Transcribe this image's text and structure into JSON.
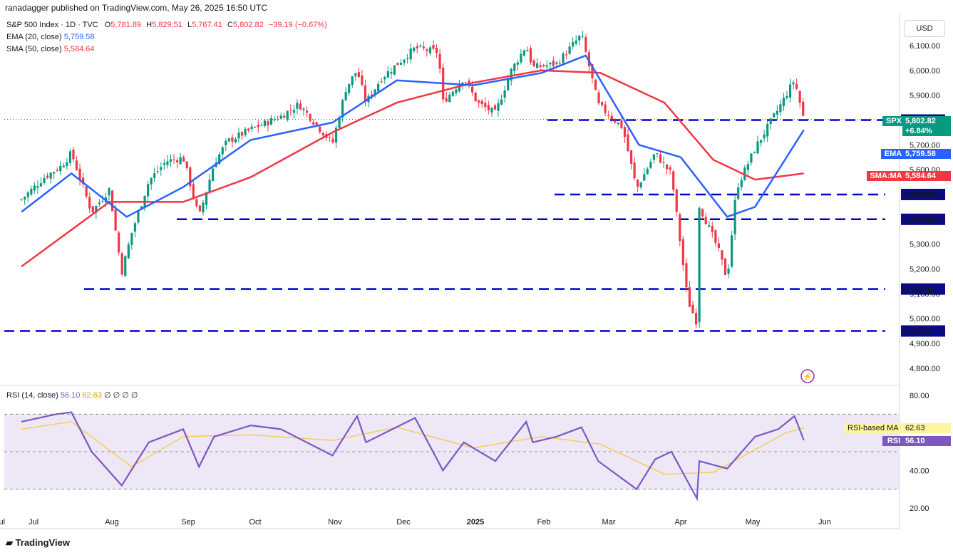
{
  "header": {
    "published": "ranadagger published on TradingView.com, May 26, 2025 16:50 UTC",
    "currency": "USD",
    "branding": "TradingView"
  },
  "legend": {
    "symbol": "S&P 500 Index · 1D · TVC",
    "ohlc": {
      "o_label": "O",
      "o": "5,781.89",
      "h_label": "H",
      "h": "5,829.51",
      "l_label": "L",
      "l": "5,767.41",
      "c_label": "C",
      "c": "5,802.82",
      "change": "−39.19 (−0.67%)"
    },
    "ema_label": "EMA (20, close)",
    "ema_value": "5,759.58",
    "sma_label": "SMA (50, close)",
    "sma_value": "5,584.64",
    "rsi_label": "RSI (14, close)",
    "rsi_value": "56.10",
    "rsi_ma_value": "62.63",
    "rsi_extra": "∅ ∅ ∅ ∅"
  },
  "price_tags": {
    "spx_name": "SPX",
    "spx_value": "5,802.82",
    "spx_change": "+6.84%",
    "ema_name": "EMA",
    "ema_value": "5,759.58",
    "sma_name": "SMA:MA",
    "sma_value": "5,584.64",
    "rsi_ma_name": "RSI-based MA",
    "rsi_ma_value": "62.63",
    "rsi_name": "RSI",
    "rsi_value": "56.10"
  },
  "colors": {
    "up": "#089981",
    "down": "#f23645",
    "ema": "#2962ff",
    "sma": "#f23645",
    "rsi": "#7e57c2",
    "rsi_ma": "#f7c948",
    "level": "#0000cc",
    "rsi_band": "#ede7f6"
  },
  "chart_data": [
    {
      "type": "candlestick",
      "title": "S&P 500 Index · 1D · TVC",
      "y_axis_ticks": [
        "4,800.00",
        "4,900.00",
        "5,000.00",
        "5,100.00",
        "5,200.00",
        "5,300.00",
        "5,400.00",
        "5,500.00",
        "5,600.00",
        "5,700.00",
        "5,800.00",
        "5,900.00",
        "6,000.00",
        "6,100.00"
      ],
      "ylim": [
        4760,
        6150
      ],
      "x_axis_ticks": [
        "Jul",
        "Aug",
        "Sep",
        "Oct",
        "Nov",
        "Dec",
        "2025",
        "Feb",
        "Mar",
        "Apr",
        "May",
        "Jun",
        "Jul"
      ],
      "horizontal_levels": [
        {
          "value": 5800,
          "label": "5,800.00",
          "from": "Dec"
        },
        {
          "value": 5500,
          "label": "5,500.00",
          "from": "Feb"
        },
        {
          "value": 5400,
          "label": "5,400.00",
          "from": "Aug"
        },
        {
          "value": 5119,
          "label": "5,119.00",
          "from": "Jul"
        },
        {
          "value": 4950,
          "label": "4,950.00",
          "from": "Jun"
        }
      ],
      "series": [
        {
          "name": "S&P 500 Index",
          "points": [
            [
              "Jun 26",
              5480
            ],
            [
              "Jul 5",
              5567
            ],
            [
              "Jul 12",
              5615
            ],
            [
              "Jul 16",
              5667
            ],
            [
              "Jul 24",
              5428
            ],
            [
              "Jul 31",
              5522
            ],
            [
              "Aug 5",
              5186
            ],
            [
              "Aug 9",
              5344
            ],
            [
              "Aug 16",
              5554
            ],
            [
              "Aug 23",
              5634
            ],
            [
              "Aug 30",
              5648
            ],
            [
              "Sep 6",
              5408
            ],
            [
              "Sep 13",
              5626
            ],
            [
              "Sep 19",
              5713
            ],
            [
              "Sep 30",
              5762
            ],
            [
              "Oct 11",
              5815
            ],
            [
              "Oct 18",
              5864
            ],
            [
              "Oct 31",
              5705
            ],
            [
              "Nov 6",
              5929
            ],
            [
              "Nov 11",
              6001
            ],
            [
              "Nov 15",
              5870
            ],
            [
              "Nov 22",
              5969
            ],
            [
              "Dec 6",
              6090
            ],
            [
              "Dec 16",
              6074
            ],
            [
              "Dec 18",
              5872
            ],
            [
              "Dec 27",
              5970
            ],
            [
              "Jan 2",
              5868
            ],
            [
              "Jan 10",
              5827
            ],
            [
              "Jan 17",
              5997
            ],
            [
              "Jan 24",
              6101
            ],
            [
              "Jan 27",
              6012
            ],
            [
              "Feb 7",
              6026
            ],
            [
              "Feb 19",
              6144
            ],
            [
              "Feb 27",
              5861
            ],
            [
              "Mar 7",
              5770
            ],
            [
              "Mar 13",
              5522
            ],
            [
              "Mar 21",
              5667
            ],
            [
              "Mar 28",
              5581
            ],
            [
              "Apr 4",
              5074
            ],
            [
              "Apr 8",
              4982
            ],
            [
              "Apr 9",
              5456
            ],
            [
              "Apr 17",
              5282
            ],
            [
              "Apr 21",
              5158
            ],
            [
              "Apr 25",
              5525
            ],
            [
              "May 2",
              5686
            ],
            [
              "May 12",
              5844
            ],
            [
              "May 19",
              5963
            ],
            [
              "May 23",
              5802
            ]
          ]
        },
        {
          "name": "EMA (20, close)",
          "points": [
            [
              "Jun 26",
              5430
            ],
            [
              "Jul 16",
              5585
            ],
            [
              "Aug 7",
              5410
            ],
            [
              "Aug 30",
              5530
            ],
            [
              "Sep 30",
              5720
            ],
            [
              "Oct 31",
              5790
            ],
            [
              "Nov 29",
              5960
            ],
            [
              "Dec 31",
              5940
            ],
            [
              "Jan 31",
              5990
            ],
            [
              "Feb 21",
              6060
            ],
            [
              "Mar 14",
              5700
            ],
            [
              "Apr 1",
              5650
            ],
            [
              "Apr 21",
              5410
            ],
            [
              "May 2",
              5450
            ],
            [
              "May 23",
              5760
            ]
          ]
        },
        {
          "name": "SMA (50, close)",
          "points": [
            [
              "Jun 26",
              5210
            ],
            [
              "Jul 31",
              5470
            ],
            [
              "Aug 30",
              5470
            ],
            [
              "Sep 30",
              5570
            ],
            [
              "Oct 31",
              5750
            ],
            [
              "Nov 29",
              5870
            ],
            [
              "Dec 31",
              5950
            ],
            [
              "Jan 31",
              6000
            ],
            [
              "Feb 28",
              5990
            ],
            [
              "Mar 25",
              5870
            ],
            [
              "Apr 15",
              5640
            ],
            [
              "May 2",
              5560
            ],
            [
              "May 23",
              5585
            ]
          ]
        }
      ]
    },
    {
      "type": "line",
      "title": "RSI (14, close)",
      "y_axis_ticks": [
        "20.00",
        "40.00",
        "80.00"
      ],
      "ylim": [
        20,
        85
      ],
      "band": [
        30,
        70
      ],
      "series": [
        {
          "name": "RSI",
          "points": [
            [
              "Jun 26",
              66
            ],
            [
              "Jul 10",
              70
            ],
            [
              "Jul 16",
              71
            ],
            [
              "Jul 24",
              50
            ],
            [
              "Aug 5",
              32
            ],
            [
              "Aug 16",
              55
            ],
            [
              "Aug 30",
              62
            ],
            [
              "Sep 6",
              42
            ],
            [
              "Sep 13",
              58
            ],
            [
              "Sep 30",
              64
            ],
            [
              "Oct 11",
              62
            ],
            [
              "Oct 31",
              48
            ],
            [
              "Nov 11",
              69
            ],
            [
              "Nov 15",
              55
            ],
            [
              "Dec 6",
              68
            ],
            [
              "Dec 18",
              40
            ],
            [
              "Dec 27",
              55
            ],
            [
              "Jan 10",
              45
            ],
            [
              "Jan 24",
              66
            ],
            [
              "Jan 27",
              55
            ],
            [
              "Feb 7",
              58
            ],
            [
              "Feb 19",
              63
            ],
            [
              "Feb 27",
              45
            ],
            [
              "Mar 13",
              30
            ],
            [
              "Mar 21",
              46
            ],
            [
              "Mar 28",
              50
            ],
            [
              "Apr 8",
              25
            ],
            [
              "Apr 9",
              45
            ],
            [
              "Apr 21",
              41
            ],
            [
              "May 2",
              58
            ],
            [
              "May 12",
              62
            ],
            [
              "May 19",
              69
            ],
            [
              "May 23",
              56.1
            ]
          ]
        },
        {
          "name": "RSI-based MA",
          "points": [
            [
              "Jun 26",
              62
            ],
            [
              "Jul 16",
              66
            ],
            [
              "Aug 9",
              42
            ],
            [
              "Aug 30",
              58
            ],
            [
              "Sep 30",
              59
            ],
            [
              "Oct 31",
              56
            ],
            [
              "Nov 29",
              63
            ],
            [
              "Dec 31",
              52
            ],
            [
              "Jan 31",
              58
            ],
            [
              "Feb 28",
              54
            ],
            [
              "Mar 25",
              38
            ],
            [
              "Apr 15",
              39
            ],
            [
              "Apr 30",
              49
            ],
            [
              "May 15",
              60
            ],
            [
              "May 23",
              62.63
            ]
          ]
        }
      ]
    }
  ]
}
